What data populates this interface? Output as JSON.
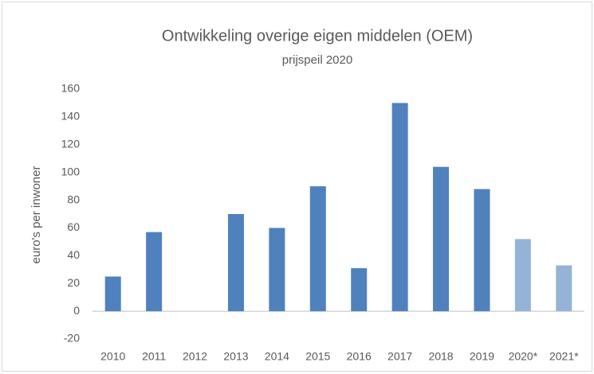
{
  "chart_data": {
    "type": "bar",
    "title": "Ontwikkeling overige eigen middelen (OEM)",
    "subtitle": "prijspeil 2020",
    "y_label": "euro's per inwoner",
    "categories": [
      "2010",
      "2011",
      "2012",
      "2013",
      "2014",
      "2015",
      "2016",
      "2017",
      "2018",
      "2019",
      "2020*",
      "2021*"
    ],
    "values": [
      25,
      57,
      0,
      70,
      60,
      90,
      31,
      150,
      104,
      88,
      52,
      33
    ],
    "colors": [
      "#4f81bd",
      "#4f81bd",
      "#4f81bd",
      "#4f81bd",
      "#4f81bd",
      "#4f81bd",
      "#4f81bd",
      "#4f81bd",
      "#4f81bd",
      "#4f81bd",
      "#95b3d7",
      "#95b3d7"
    ],
    "ylim": [
      -20,
      160
    ],
    "yticks": [
      -20,
      0,
      20,
      40,
      60,
      80,
      100,
      120,
      140,
      160
    ],
    "grid": false
  }
}
